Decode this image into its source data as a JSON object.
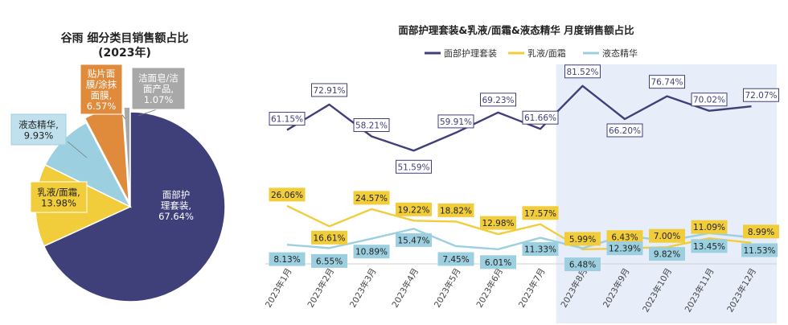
{
  "colors": {
    "navy": "#3f3f7a",
    "yellow": "#f2cd3b",
    "lightblue": "#9ccfe0",
    "orange": "#e08a3c",
    "grey": "#a8a8a8",
    "highlight": "#e8edfa"
  },
  "chart_data": [
    {
      "type": "pie",
      "title": "谷雨 细分类目销售额占比",
      "subtitle": "(2023年)",
      "slices": [
        {
          "label_lines": [
            "面部护",
            "理套装,",
            "67.64%"
          ],
          "value": 67.64,
          "color": "#3f3f7a"
        },
        {
          "label_lines": [
            "乳液/面霜,",
            "13.98%"
          ],
          "value": 13.98,
          "color": "#f2cd3b"
        },
        {
          "label_lines": [
            "液态精华,",
            "9.93%"
          ],
          "value": 9.93,
          "color": "#9ccfe0"
        },
        {
          "label_lines": [
            "贴片面",
            "膜/涂抹",
            "面膜,",
            "6.57%"
          ],
          "value": 6.57,
          "color": "#e08a3c"
        },
        {
          "label_lines": [
            "洁面皂/洁",
            "面产品,",
            "1.07%"
          ],
          "value": 1.07,
          "color": "#a8a8a8"
        }
      ]
    },
    {
      "type": "line",
      "title": "面部护理套装&乳液/面霜&液态精华 月度销售额占比",
      "legend_position": "top",
      "categories": [
        "2023年1月",
        "2023年2月",
        "2023年3月",
        "2023年4月",
        "2023年5月",
        "2023年6月",
        "2023年7月",
        "2023年8月",
        "2023年9月",
        "2023年10月",
        "2023年11月",
        "2023年12月"
      ],
      "highlight_from_category": "2023年8月",
      "ylim": [
        0,
        90
      ],
      "series": [
        {
          "name": "面部护理套装",
          "color": "#3f3f7a",
          "values": [
            61.15,
            72.91,
            58.21,
            51.59,
            59.91,
            69.23,
            61.66,
            81.52,
            66.2,
            76.74,
            70.02,
            72.07
          ],
          "labels": [
            "61.15%",
            "72.91%",
            "58.21%",
            "51.59%",
            "59.91%",
            "69.23%",
            "61.66%",
            "81.52%",
            "66.20%",
            "76.74%",
            "70.02%",
            "72.07%"
          ]
        },
        {
          "name": "乳液/面霜",
          "color": "#f2cd3b",
          "values": [
            26.06,
            16.61,
            24.57,
            19.22,
            18.82,
            12.98,
            17.57,
            5.99,
            6.43,
            7.0,
            11.09,
            8.99
          ],
          "labels": [
            "26.06%",
            "16.61%",
            "24.57%",
            "19.22%",
            "18.82%",
            "12.98%",
            "17.57%",
            "5.99%",
            "6.43%",
            "7.00%",
            "11.09%",
            "8.99%"
          ]
        },
        {
          "name": "液态精华",
          "color": "#9ccfe0",
          "values": [
            8.13,
            6.55,
            10.89,
            15.47,
            7.45,
            6.01,
            11.33,
            6.48,
            12.39,
            9.82,
            13.45,
            11.53
          ],
          "labels": [
            "8.13%",
            "6.55%",
            "10.89%",
            "15.47%",
            "7.45%",
            "6.01%",
            "11.33%",
            "6.48%",
            "12.39%",
            "9.82%",
            "13.45%",
            "11.53%"
          ]
        }
      ]
    }
  ]
}
